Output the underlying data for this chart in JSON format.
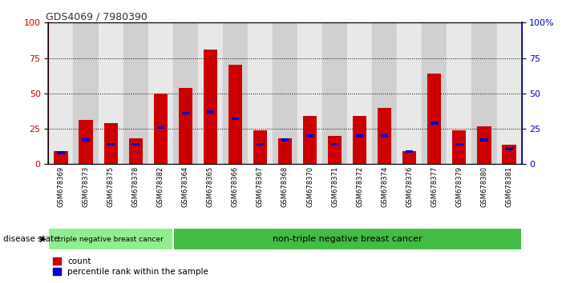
{
  "title": "GDS4069 / 7980390",
  "samples": [
    "GSM678369",
    "GSM678373",
    "GSM678375",
    "GSM678378",
    "GSM678382",
    "GSM678364",
    "GSM678365",
    "GSM678366",
    "GSM678367",
    "GSM678368",
    "GSM678370",
    "GSM678371",
    "GSM678372",
    "GSM678374",
    "GSM678376",
    "GSM678377",
    "GSM678379",
    "GSM678380",
    "GSM678381"
  ],
  "count_values": [
    9,
    31,
    29,
    18,
    50,
    54,
    81,
    70,
    24,
    18,
    34,
    20,
    34,
    40,
    9,
    64,
    24,
    27,
    14
  ],
  "percentile_values": [
    8,
    17,
    14,
    14,
    26,
    36,
    37,
    32,
    14,
    17,
    20,
    14,
    20,
    20,
    9,
    29,
    14,
    17,
    11
  ],
  "group1_label": "triple negative breast cancer",
  "group1_count": 5,
  "group2_label": "non-triple negative breast cancer",
  "group2_count": 14,
  "disease_state_label": "disease state",
  "legend_count_label": "count",
  "legend_percentile_label": "percentile rank within the sample",
  "bar_color": "#cc0000",
  "percentile_color": "#0000cc",
  "group1_bg": "#90ee90",
  "group2_bg": "#44bb44",
  "ylim_left": [
    0,
    100
  ],
  "ylim_right": [
    0,
    100
  ],
  "yticks_left": [
    0,
    25,
    50,
    75,
    100
  ],
  "yticks_right": [
    0,
    25,
    50,
    75,
    100
  ],
  "grid_values": [
    25,
    50,
    75
  ],
  "bar_width": 0.55,
  "plot_bg": "#ffffff",
  "col_bg_odd": "#e8e8e8",
  "col_bg_even": "#d0d0d0",
  "title_color": "#333333",
  "left_axis_color": "#cc0000",
  "right_axis_color": "#0000cc"
}
